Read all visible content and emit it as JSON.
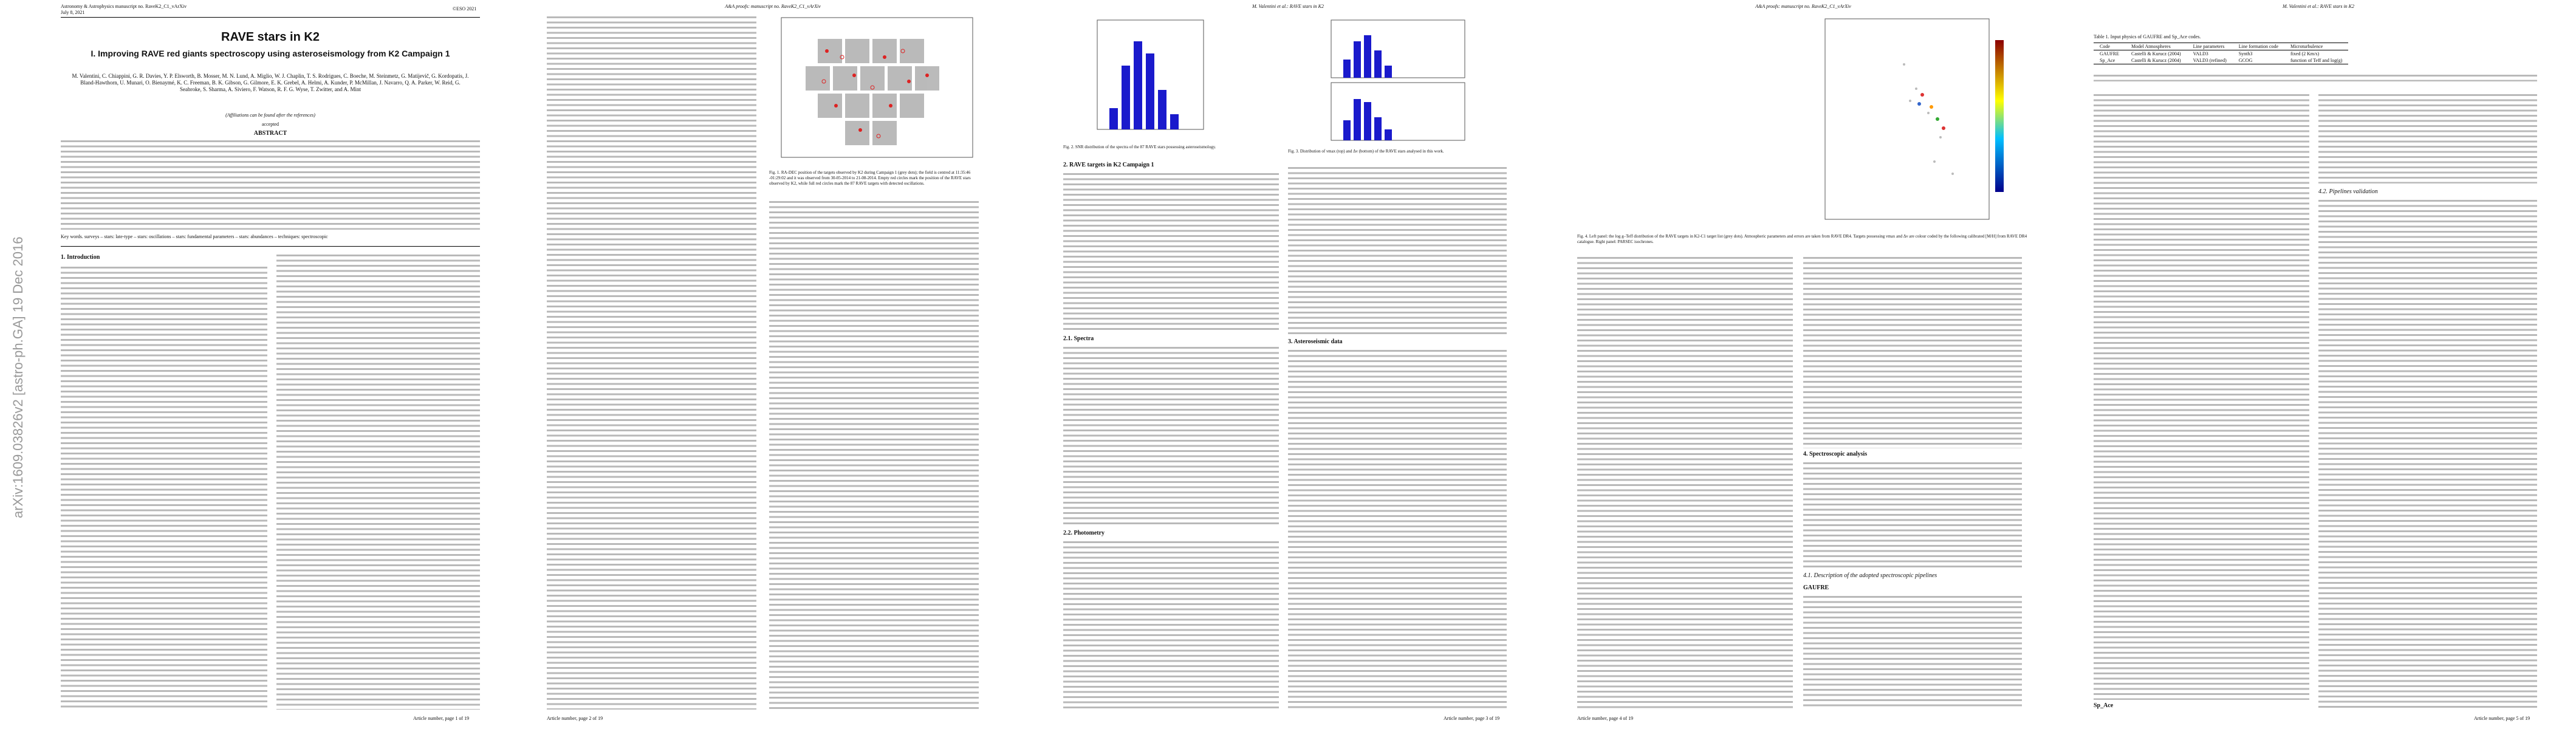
{
  "pages": [
    {
      "header": {
        "journal": "Astronomy & Astrophysics manuscript no. RaveK2_C1_vArXiv",
        "date": "July 8, 2021",
        "copyright": "©ESO 2021"
      },
      "arxiv": "arXiv:1609.03826v2 [astro-ph.GA] 19 Dec 2016",
      "title": "RAVE stars in K2",
      "subtitle": "I. Improving RAVE red giants spectroscopy using asteroseismology from K2 Campaign 1",
      "authors": "M. Valentini, C. Chiappini, G. R. Davies, Y. P. Elsworth, B. Mosser, M. N. Lund, A. Miglio, W. J. Chaplin, T. S. Rodrigues, C. Boeche, M. Steinmetz, G. Matijevič, G. Kordopatis, J. Bland-Hawthorn, U. Munari, O. Bienaymé, K. C. Freeman, B. K. Gibson, G. Gilmore, E. K. Grebel, A. Helmi, A. Kunder, P. McMillan, J. Navarro, Q. A. Parker, W. Reid, G. Seabroke, S. Sharma, A. Siviero, F. Watson, R. F. G. Wyse, T. Zwitter, and A. Mint",
      "affiliations": "(Affiliations can be found after the references)",
      "accepted": "accepted",
      "abstract_heading": "ABSTRACT",
      "keywords": "Key words. surveys – stars: late-type – stars: oscillations – stars: fundamental parameters – stars: abundances – techniques: spectroscopic",
      "section": "1. Introduction",
      "footer": "Article number, page 1 of 19"
    },
    {
      "header": "A&A proofs: manuscript no. RaveK2_C1_vArXiv",
      "caption": "Fig. 1. RA-DEC position of the targets observed by K2 during Campaign 1 (grey dots); the field is centred at 11:35:46 -01:29:02 and it was observed from 30-05-2014 to 21-08-2014. Empty red circles mark the position of the RAVE stars observed by K2, while full red circles mark the 87 RAVE targets with detected oscillations.",
      "footer": "Article number, page 2 of 19"
    },
    {
      "header": "M. Valentini et al.: RAVE stars in K2",
      "caption2": "Fig. 2. SNR distribution of the spectra of the 87 RAVE stars possessing asteroseismology.",
      "caption3": "Fig. 3. Distribution of νmax (top) and Δν (bottom) of the RAVE stars analysed in this work.",
      "sections": [
        "2. RAVE targets in K2 Campaign 1",
        "2.1. Spectra",
        "2.2. Photometry",
        "3. Asteroseismic data"
      ],
      "footer": "Article number, page 3 of 19"
    },
    {
      "header": "A&A proofs: manuscript no. RaveK2_C1_vArXiv",
      "caption": "Fig. 4. Left panel: the log g–Teff distribution of the RAVE targets in K2-C1 target list (grey dots). Atmospheric parameters and errors are taken from RAVE DR4. Targets possessing νmax and Δν are colour coded by the following calibrated [M/H] from RAVE DR4 catalogue. Right panel: PARSEC isochrones.",
      "sections": [
        "4. Spectroscopic analysis",
        "4.1. Description of the adopted spectroscopic pipelines",
        "GAUFRE"
      ],
      "footer": "Article number, page 4 of 19"
    },
    {
      "header": "M. Valentini et al.: RAVE stars in K2",
      "table": {
        "caption": "Table 1. Input physics of GAUFRE and Sp_Ace codes.",
        "head": [
          "Code",
          "Model Atmospheres",
          "Line parameters",
          "Line formation code",
          "Microturbulence"
        ],
        "rows": [
          [
            "GAUFRE",
            "Castelli & Kurucz (2004)",
            "VALD3",
            "Synth3",
            "fixed (2 Km/s)"
          ],
          [
            "Sp_Ace",
            "Castelli & Kurucz (2004)",
            "VALD3 (refined)",
            "GCOG",
            "function of Teff and log(g)"
          ]
        ]
      },
      "sections": [
        "4.2. Pipelines validation",
        "Sp_Ace"
      ],
      "footer": "Article number, page 5 of 19"
    }
  ]
}
